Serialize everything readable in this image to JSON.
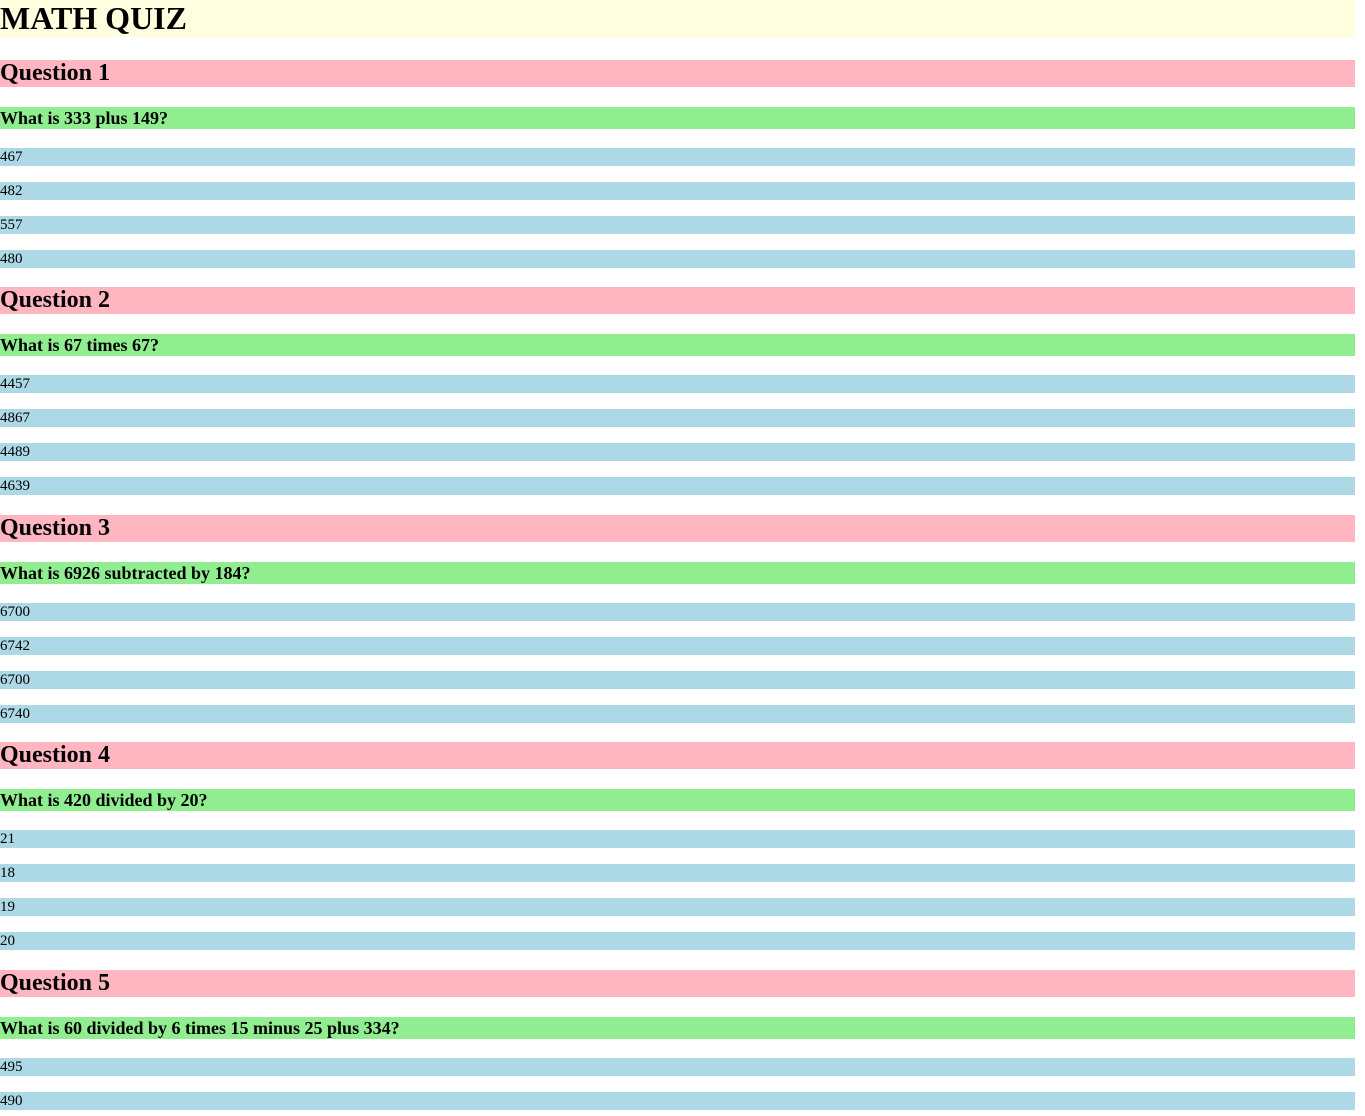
{
  "title": "MATH QUIZ",
  "questions": [
    {
      "heading": "Question 1",
      "text": "What is 333 plus 149?",
      "answers": [
        "467",
        "482",
        "557",
        "480"
      ]
    },
    {
      "heading": "Question 2",
      "text": "What is 67 times 67?",
      "answers": [
        "4457",
        "4867",
        "4489",
        "4639"
      ]
    },
    {
      "heading": "Question 3",
      "text": "What is 6926 subtracted by 184?",
      "answers": [
        "6700",
        "6742",
        "6700",
        "6740"
      ]
    },
    {
      "heading": "Question 4",
      "text": "What is 420 divided by 20?",
      "answers": [
        "21",
        "18",
        "19",
        "20"
      ]
    },
    {
      "heading": "Question 5",
      "text": "What is 60 divided by 6 times 15 minus 25 plus 334?",
      "answers": [
        "495",
        "490"
      ]
    }
  ],
  "colors": {
    "title_bg": "#ffffe0",
    "question_heading_bg": "#ffb6c1",
    "question_text_bg": "#90ee90",
    "answer_bg": "#add8e6"
  }
}
